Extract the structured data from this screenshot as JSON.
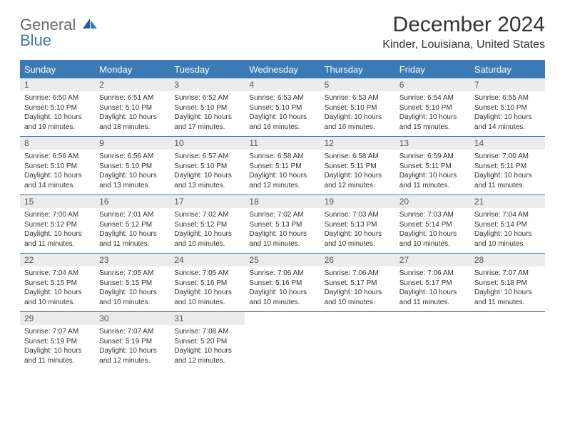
{
  "logo": {
    "line1": "General",
    "line2": "Blue"
  },
  "title": "December 2024",
  "subtitle": "Kinder, Louisiana, United States",
  "colors": {
    "header_bg": "#3c7ab5",
    "daynum_bg": "#ececec",
    "border": "#3c7ab5",
    "text": "#333333"
  },
  "dayNames": [
    "Sunday",
    "Monday",
    "Tuesday",
    "Wednesday",
    "Thursday",
    "Friday",
    "Saturday"
  ],
  "weeks": [
    [
      {
        "num": "1",
        "sunrise": "Sunrise: 6:50 AM",
        "sunset": "Sunset: 5:10 PM",
        "day1": "Daylight: 10 hours",
        "day2": "and 19 minutes."
      },
      {
        "num": "2",
        "sunrise": "Sunrise: 6:51 AM",
        "sunset": "Sunset: 5:10 PM",
        "day1": "Daylight: 10 hours",
        "day2": "and 18 minutes."
      },
      {
        "num": "3",
        "sunrise": "Sunrise: 6:52 AM",
        "sunset": "Sunset: 5:10 PM",
        "day1": "Daylight: 10 hours",
        "day2": "and 17 minutes."
      },
      {
        "num": "4",
        "sunrise": "Sunrise: 6:53 AM",
        "sunset": "Sunset: 5:10 PM",
        "day1": "Daylight: 10 hours",
        "day2": "and 16 minutes."
      },
      {
        "num": "5",
        "sunrise": "Sunrise: 6:53 AM",
        "sunset": "Sunset: 5:10 PM",
        "day1": "Daylight: 10 hours",
        "day2": "and 16 minutes."
      },
      {
        "num": "6",
        "sunrise": "Sunrise: 6:54 AM",
        "sunset": "Sunset: 5:10 PM",
        "day1": "Daylight: 10 hours",
        "day2": "and 15 minutes."
      },
      {
        "num": "7",
        "sunrise": "Sunrise: 6:55 AM",
        "sunset": "Sunset: 5:10 PM",
        "day1": "Daylight: 10 hours",
        "day2": "and 14 minutes."
      }
    ],
    [
      {
        "num": "8",
        "sunrise": "Sunrise: 6:56 AM",
        "sunset": "Sunset: 5:10 PM",
        "day1": "Daylight: 10 hours",
        "day2": "and 14 minutes."
      },
      {
        "num": "9",
        "sunrise": "Sunrise: 6:56 AM",
        "sunset": "Sunset: 5:10 PM",
        "day1": "Daylight: 10 hours",
        "day2": "and 13 minutes."
      },
      {
        "num": "10",
        "sunrise": "Sunrise: 6:57 AM",
        "sunset": "Sunset: 5:10 PM",
        "day1": "Daylight: 10 hours",
        "day2": "and 13 minutes."
      },
      {
        "num": "11",
        "sunrise": "Sunrise: 6:58 AM",
        "sunset": "Sunset: 5:11 PM",
        "day1": "Daylight: 10 hours",
        "day2": "and 12 minutes."
      },
      {
        "num": "12",
        "sunrise": "Sunrise: 6:58 AM",
        "sunset": "Sunset: 5:11 PM",
        "day1": "Daylight: 10 hours",
        "day2": "and 12 minutes."
      },
      {
        "num": "13",
        "sunrise": "Sunrise: 6:59 AM",
        "sunset": "Sunset: 5:11 PM",
        "day1": "Daylight: 10 hours",
        "day2": "and 11 minutes."
      },
      {
        "num": "14",
        "sunrise": "Sunrise: 7:00 AM",
        "sunset": "Sunset: 5:11 PM",
        "day1": "Daylight: 10 hours",
        "day2": "and 11 minutes."
      }
    ],
    [
      {
        "num": "15",
        "sunrise": "Sunrise: 7:00 AM",
        "sunset": "Sunset: 5:12 PM",
        "day1": "Daylight: 10 hours",
        "day2": "and 11 minutes."
      },
      {
        "num": "16",
        "sunrise": "Sunrise: 7:01 AM",
        "sunset": "Sunset: 5:12 PM",
        "day1": "Daylight: 10 hours",
        "day2": "and 11 minutes."
      },
      {
        "num": "17",
        "sunrise": "Sunrise: 7:02 AM",
        "sunset": "Sunset: 5:12 PM",
        "day1": "Daylight: 10 hours",
        "day2": "and 10 minutes."
      },
      {
        "num": "18",
        "sunrise": "Sunrise: 7:02 AM",
        "sunset": "Sunset: 5:13 PM",
        "day1": "Daylight: 10 hours",
        "day2": "and 10 minutes."
      },
      {
        "num": "19",
        "sunrise": "Sunrise: 7:03 AM",
        "sunset": "Sunset: 5:13 PM",
        "day1": "Daylight: 10 hours",
        "day2": "and 10 minutes."
      },
      {
        "num": "20",
        "sunrise": "Sunrise: 7:03 AM",
        "sunset": "Sunset: 5:14 PM",
        "day1": "Daylight: 10 hours",
        "day2": "and 10 minutes."
      },
      {
        "num": "21",
        "sunrise": "Sunrise: 7:04 AM",
        "sunset": "Sunset: 5:14 PM",
        "day1": "Daylight: 10 hours",
        "day2": "and 10 minutes."
      }
    ],
    [
      {
        "num": "22",
        "sunrise": "Sunrise: 7:04 AM",
        "sunset": "Sunset: 5:15 PM",
        "day1": "Daylight: 10 hours",
        "day2": "and 10 minutes."
      },
      {
        "num": "23",
        "sunrise": "Sunrise: 7:05 AM",
        "sunset": "Sunset: 5:15 PM",
        "day1": "Daylight: 10 hours",
        "day2": "and 10 minutes."
      },
      {
        "num": "24",
        "sunrise": "Sunrise: 7:05 AM",
        "sunset": "Sunset: 5:16 PM",
        "day1": "Daylight: 10 hours",
        "day2": "and 10 minutes."
      },
      {
        "num": "25",
        "sunrise": "Sunrise: 7:06 AM",
        "sunset": "Sunset: 5:16 PM",
        "day1": "Daylight: 10 hours",
        "day2": "and 10 minutes."
      },
      {
        "num": "26",
        "sunrise": "Sunrise: 7:06 AM",
        "sunset": "Sunset: 5:17 PM",
        "day1": "Daylight: 10 hours",
        "day2": "and 10 minutes."
      },
      {
        "num": "27",
        "sunrise": "Sunrise: 7:06 AM",
        "sunset": "Sunset: 5:17 PM",
        "day1": "Daylight: 10 hours",
        "day2": "and 11 minutes."
      },
      {
        "num": "28",
        "sunrise": "Sunrise: 7:07 AM",
        "sunset": "Sunset: 5:18 PM",
        "day1": "Daylight: 10 hours",
        "day2": "and 11 minutes."
      }
    ],
    [
      {
        "num": "29",
        "sunrise": "Sunrise: 7:07 AM",
        "sunset": "Sunset: 5:19 PM",
        "day1": "Daylight: 10 hours",
        "day2": "and 11 minutes."
      },
      {
        "num": "30",
        "sunrise": "Sunrise: 7:07 AM",
        "sunset": "Sunset: 5:19 PM",
        "day1": "Daylight: 10 hours",
        "day2": "and 12 minutes."
      },
      {
        "num": "31",
        "sunrise": "Sunrise: 7:08 AM",
        "sunset": "Sunset: 5:20 PM",
        "day1": "Daylight: 10 hours",
        "day2": "and 12 minutes."
      },
      null,
      null,
      null,
      null
    ]
  ]
}
